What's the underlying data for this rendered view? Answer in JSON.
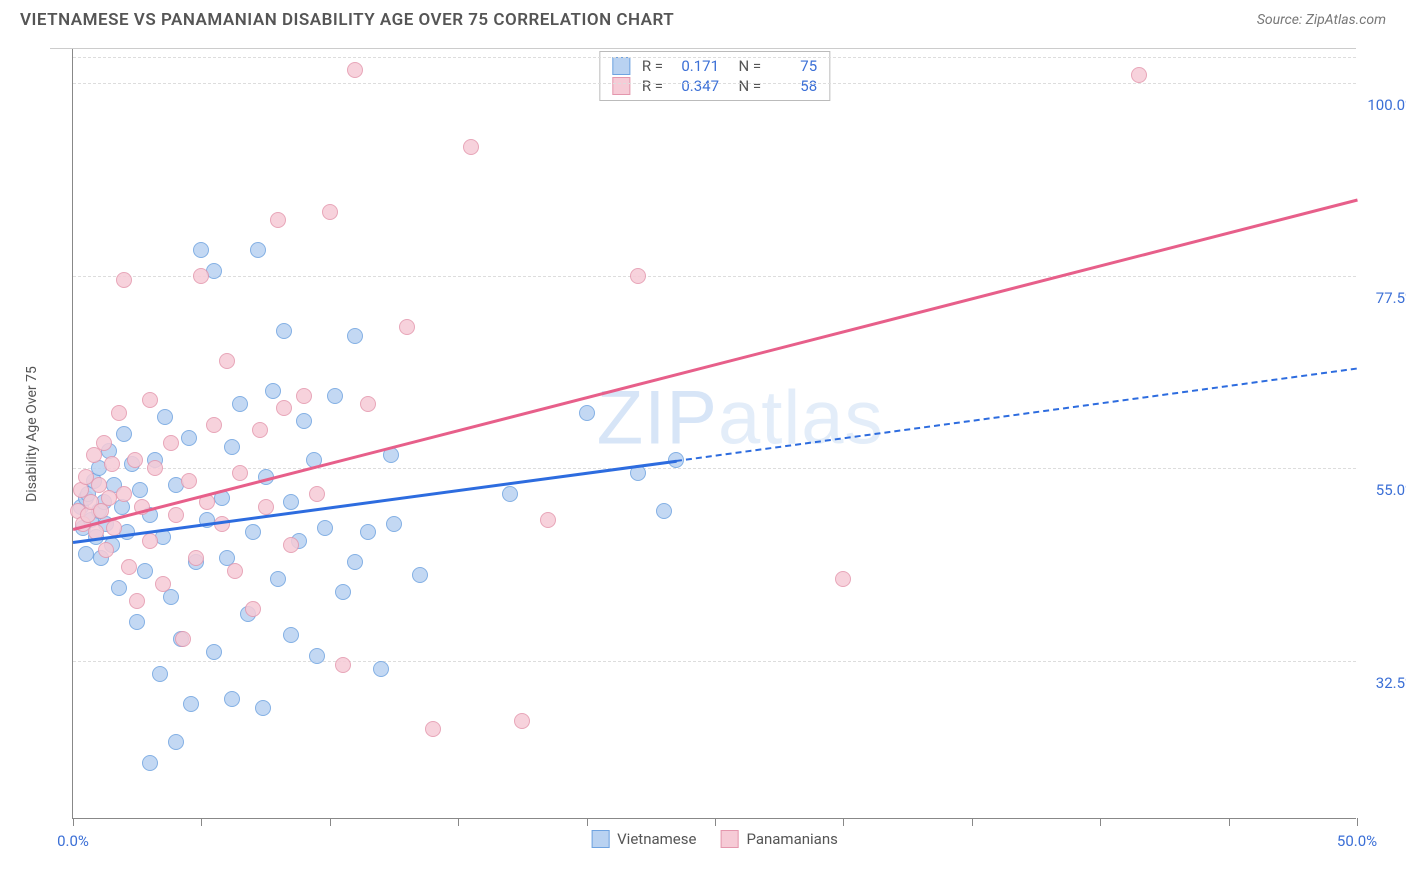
{
  "title": "VIETNAMESE VS PANAMANIAN DISABILITY AGE OVER 75 CORRELATION CHART",
  "source": "Source: ZipAtlas.com",
  "y_axis_title": "Disability Age Over 75",
  "watermark_bold": "ZIP",
  "watermark_thin": "atlas",
  "colors": {
    "series1_fill": "#b9d2f1",
    "series1_stroke": "#6fa3e0",
    "series2_fill": "#f6cbd6",
    "series2_stroke": "#e497ad",
    "trend1": "#2d6cdf",
    "trend2": "#e75f8a",
    "grid": "#dddddd",
    "axis_text": "#3b6fd6"
  },
  "x_range": [
    0,
    50
  ],
  "y_range": [
    14,
    104
  ],
  "y_ticks": [
    {
      "v": 32.5,
      "label": "32.5%"
    },
    {
      "v": 55.0,
      "label": "55.0%"
    },
    {
      "v": 77.5,
      "label": "77.5%"
    },
    {
      "v": 100.0,
      "label": "100.0%"
    }
  ],
  "x_ticks": [
    0,
    5,
    10,
    15,
    20,
    25,
    30,
    35,
    40,
    45,
    50
  ],
  "x_tick_labels": [
    {
      "v": 0,
      "label": "0.0%"
    },
    {
      "v": 50,
      "label": "50.0%"
    }
  ],
  "stats": [
    {
      "swatch_fill": "#b9d2f1",
      "swatch_stroke": "#6fa3e0",
      "r": "0.171",
      "n": "75"
    },
    {
      "swatch_fill": "#f6cbd6",
      "swatch_stroke": "#e497ad",
      "r": "0.347",
      "n": "58"
    }
  ],
  "bottom_legend": [
    {
      "swatch_fill": "#b9d2f1",
      "swatch_stroke": "#6fa3e0",
      "label": "Vietnamese"
    },
    {
      "swatch_fill": "#f6cbd6",
      "swatch_stroke": "#e497ad",
      "label": "Panamanians"
    }
  ],
  "trend_lines": [
    {
      "color_key": "trend1",
      "x1": 0,
      "y1": 46.5,
      "x2": 23.5,
      "y2": 56.0,
      "solid": true
    },
    {
      "color_key": "trend1",
      "x1": 23.5,
      "y1": 56.0,
      "x2": 50,
      "y2": 66.8,
      "solid": false
    },
    {
      "color_key": "trend2",
      "x1": 0,
      "y1": 48.0,
      "x2": 50,
      "y2": 86.5,
      "solid": true
    }
  ],
  "series": [
    {
      "fill": "#b9d2f1",
      "stroke": "#6fa3e0",
      "points": [
        [
          0.3,
          50.5
        ],
        [
          0.4,
          48.0
        ],
        [
          0.5,
          51.5
        ],
        [
          0.5,
          45.0
        ],
        [
          0.6,
          52.0
        ],
        [
          0.7,
          49.0
        ],
        [
          0.8,
          53.5
        ],
        [
          0.9,
          47.0
        ],
        [
          1.0,
          50.0
        ],
        [
          1.0,
          55.0
        ],
        [
          1.1,
          44.5
        ],
        [
          1.2,
          51.0
        ],
        [
          1.3,
          48.5
        ],
        [
          1.4,
          57.0
        ],
        [
          1.5,
          46.0
        ],
        [
          1.6,
          53.0
        ],
        [
          1.8,
          41.0
        ],
        [
          1.9,
          50.5
        ],
        [
          2.0,
          59.0
        ],
        [
          2.1,
          47.5
        ],
        [
          2.3,
          55.5
        ],
        [
          2.5,
          37.0
        ],
        [
          2.6,
          52.5
        ],
        [
          2.8,
          43.0
        ],
        [
          3.0,
          49.5
        ],
        [
          3.0,
          20.5
        ],
        [
          3.2,
          56.0
        ],
        [
          3.4,
          31.0
        ],
        [
          3.5,
          47.0
        ],
        [
          3.6,
          61.0
        ],
        [
          3.8,
          40.0
        ],
        [
          4.0,
          23.0
        ],
        [
          4.0,
          53.0
        ],
        [
          4.2,
          35.0
        ],
        [
          4.5,
          58.5
        ],
        [
          4.6,
          27.5
        ],
        [
          4.8,
          44.0
        ],
        [
          5.0,
          80.5
        ],
        [
          5.2,
          49.0
        ],
        [
          5.5,
          33.5
        ],
        [
          5.5,
          78.0
        ],
        [
          5.8,
          51.5
        ],
        [
          6.0,
          44.5
        ],
        [
          6.2,
          28.0
        ],
        [
          6.2,
          57.5
        ],
        [
          6.5,
          62.5
        ],
        [
          6.8,
          38.0
        ],
        [
          7.0,
          47.5
        ],
        [
          7.2,
          80.5
        ],
        [
          7.4,
          27.0
        ],
        [
          7.5,
          54.0
        ],
        [
          7.8,
          64.0
        ],
        [
          8.0,
          42.0
        ],
        [
          8.2,
          71.0
        ],
        [
          8.5,
          35.5
        ],
        [
          8.5,
          51.0
        ],
        [
          8.8,
          46.5
        ],
        [
          9.0,
          60.5
        ],
        [
          9.4,
          56.0
        ],
        [
          9.5,
          33.0
        ],
        [
          9.8,
          48.0
        ],
        [
          10.2,
          63.5
        ],
        [
          10.5,
          40.5
        ],
        [
          11.0,
          44.0
        ],
        [
          11.0,
          70.5
        ],
        [
          11.5,
          47.5
        ],
        [
          12.0,
          31.5
        ],
        [
          12.4,
          56.5
        ],
        [
          12.5,
          48.5
        ],
        [
          13.5,
          42.5
        ],
        [
          17.0,
          52.0
        ],
        [
          20.0,
          61.5
        ],
        [
          22.0,
          54.5
        ],
        [
          23.0,
          50.0
        ],
        [
          23.5,
          56.0
        ]
      ]
    },
    {
      "fill": "#f6cbd6",
      "stroke": "#e497ad",
      "points": [
        [
          0.2,
          50.0
        ],
        [
          0.3,
          52.5
        ],
        [
          0.4,
          48.5
        ],
        [
          0.5,
          54.0
        ],
        [
          0.6,
          49.5
        ],
        [
          0.7,
          51.0
        ],
        [
          0.8,
          56.5
        ],
        [
          0.9,
          47.5
        ],
        [
          1.0,
          53.0
        ],
        [
          1.1,
          50.0
        ],
        [
          1.2,
          58.0
        ],
        [
          1.3,
          45.5
        ],
        [
          1.4,
          51.5
        ],
        [
          1.5,
          55.5
        ],
        [
          1.6,
          48.0
        ],
        [
          1.8,
          61.5
        ],
        [
          2.0,
          52.0
        ],
        [
          2.0,
          77.0
        ],
        [
          2.2,
          43.5
        ],
        [
          2.4,
          56.0
        ],
        [
          2.5,
          39.5
        ],
        [
          2.7,
          50.5
        ],
        [
          3.0,
          63.0
        ],
        [
          3.0,
          46.5
        ],
        [
          3.2,
          55.0
        ],
        [
          3.5,
          41.5
        ],
        [
          3.8,
          58.0
        ],
        [
          4.0,
          49.5
        ],
        [
          4.3,
          35.0
        ],
        [
          4.5,
          53.5
        ],
        [
          4.8,
          44.5
        ],
        [
          5.0,
          77.5
        ],
        [
          5.2,
          51.0
        ],
        [
          5.5,
          60.0
        ],
        [
          5.8,
          48.5
        ],
        [
          6.0,
          67.5
        ],
        [
          6.3,
          43.0
        ],
        [
          6.5,
          54.5
        ],
        [
          7.0,
          38.5
        ],
        [
          7.3,
          59.5
        ],
        [
          7.5,
          50.5
        ],
        [
          8.0,
          84.0
        ],
        [
          8.2,
          62.0
        ],
        [
          8.5,
          46.0
        ],
        [
          9.0,
          63.5
        ],
        [
          9.5,
          52.0
        ],
        [
          10.0,
          85.0
        ],
        [
          10.5,
          32.0
        ],
        [
          11.0,
          101.5
        ],
        [
          11.5,
          62.5
        ],
        [
          13.0,
          71.5
        ],
        [
          14.0,
          24.5
        ],
        [
          15.5,
          92.5
        ],
        [
          17.5,
          25.5
        ],
        [
          22.0,
          77.5
        ],
        [
          30.0,
          42.0
        ],
        [
          41.5,
          101.0
        ],
        [
          18.5,
          49.0
        ]
      ]
    }
  ]
}
